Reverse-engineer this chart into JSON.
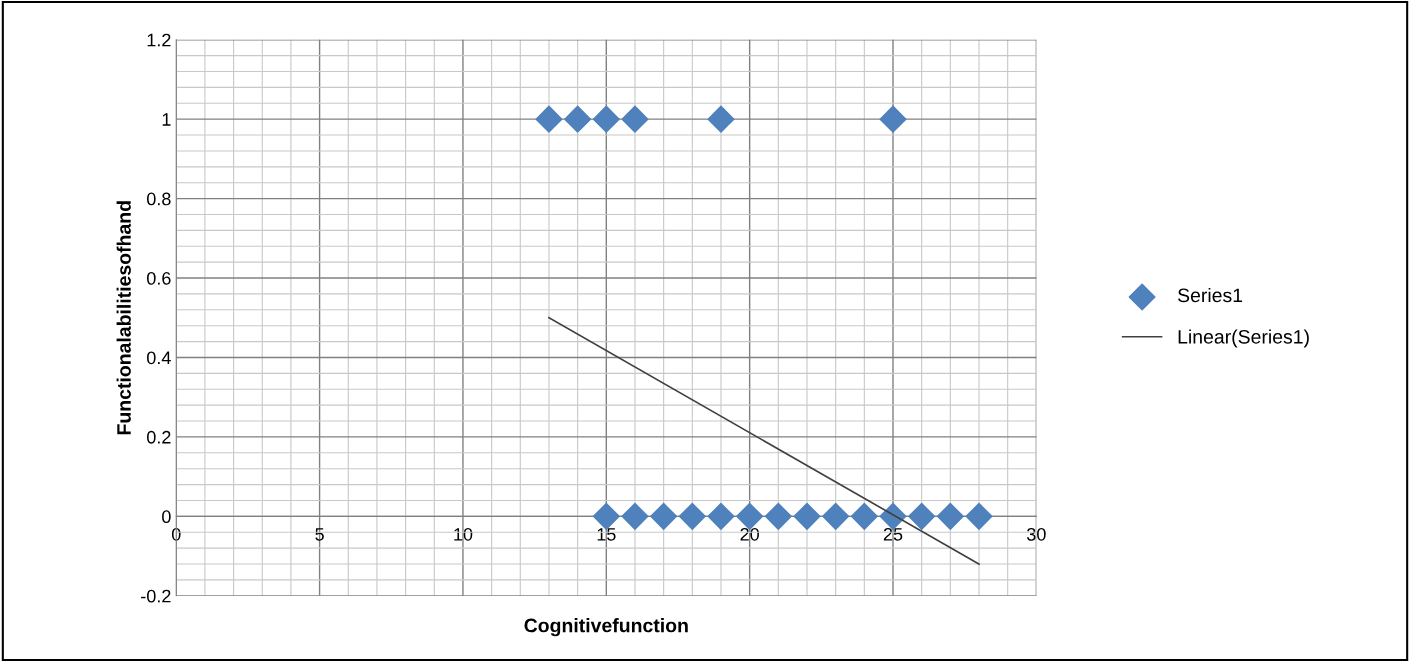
{
  "chart_data": {
    "type": "scatter",
    "xlabel": "Cognitivefunction",
    "ylabel": "Functionalabilitiesofhand",
    "xlim": [
      0,
      30
    ],
    "ylim": [
      -0.2,
      1.2
    ],
    "xticks": [
      0,
      5,
      10,
      15,
      20,
      25,
      30
    ],
    "yticks": [
      -0.2,
      0,
      0.2,
      0.4,
      0.6,
      0.8,
      1,
      1.2
    ],
    "grid": true,
    "legend": "right",
    "marker": "diamond",
    "series": [
      {
        "name": "Series1",
        "color": "#4f81bd",
        "x": [
          13,
          14,
          15,
          16,
          19,
          25,
          15,
          16,
          17,
          18,
          19,
          20,
          21,
          22,
          23,
          24,
          25,
          26,
          27,
          28
        ],
        "values": [
          1,
          1,
          1,
          1,
          1,
          1,
          0,
          0,
          0,
          0,
          0,
          0,
          0,
          0,
          0,
          0,
          0,
          0,
          0,
          0
        ]
      },
      {
        "name": "Linear(Series1)",
        "type": "line",
        "color": "#404040",
        "x": [
          13,
          28
        ],
        "values": [
          0.5,
          -0.12
        ],
        "marker": "none"
      }
    ]
  }
}
